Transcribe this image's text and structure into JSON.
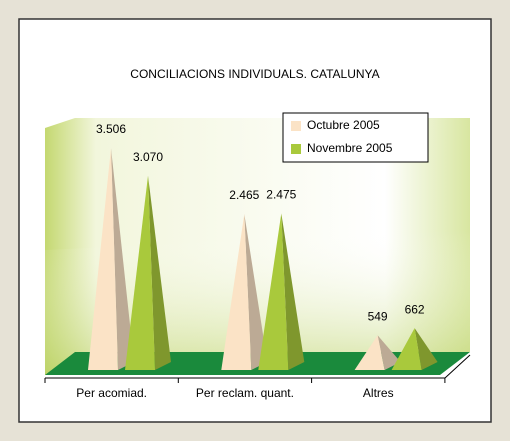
{
  "chart_data": {
    "type": "pyramid3d",
    "title": "CONCILIACIONS INDIVIDUALS. CATALUNYA",
    "categories": [
      "Per acomiad.",
      "Per reclam. quant.",
      "Altres"
    ],
    "series": [
      {
        "name": "Octubre 2005",
        "color": "#fbe3c6",
        "values": [
          3506,
          2465,
          549
        ],
        "value_labels": [
          "3.506",
          "2.465",
          "549"
        ]
      },
      {
        "name": "Novembre 2005",
        "color": "#a9c93c",
        "values": [
          3070,
          2475,
          662
        ],
        "value_labels": [
          "3.070",
          "2.475",
          "662"
        ]
      }
    ],
    "legend": "top-right"
  }
}
